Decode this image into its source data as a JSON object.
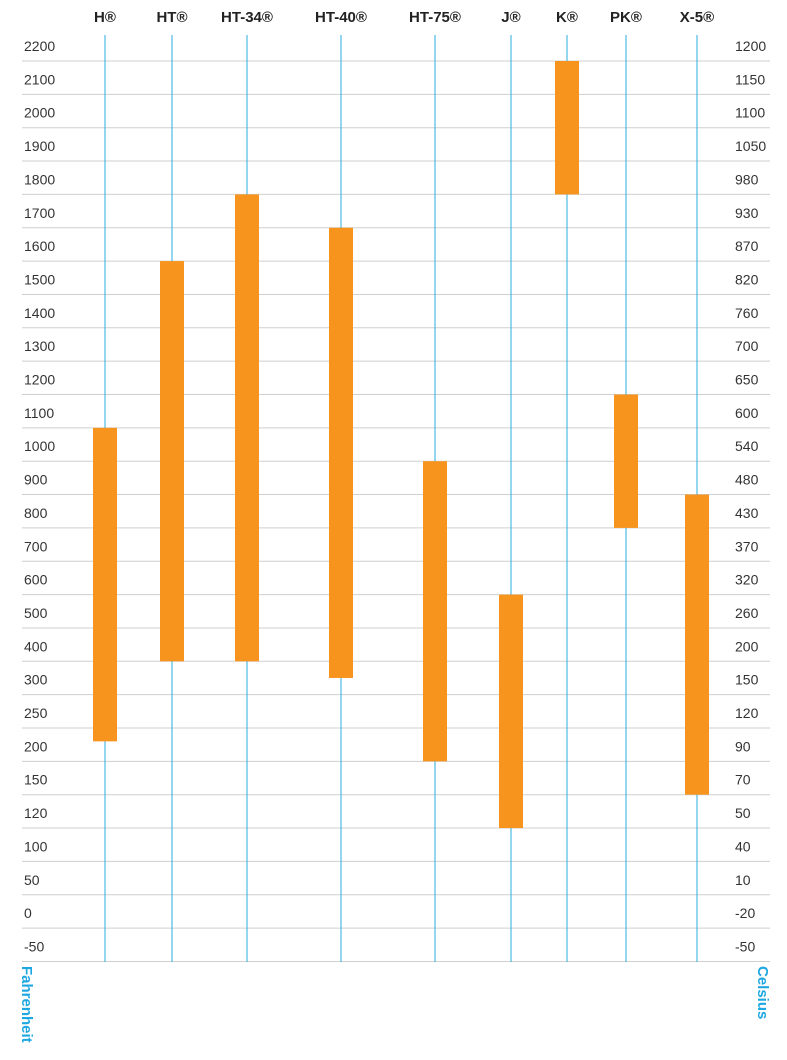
{
  "chart_data": {
    "type": "range-bar",
    "categories": [
      "H®",
      "HT®",
      "HT-34®",
      "HT-40®",
      "HT-75®",
      "J®",
      "K®",
      "PK®",
      "X-5®"
    ],
    "low": [
      230,
      400,
      400,
      350,
      200,
      120,
      1800,
      800,
      150
    ],
    "high": [
      1100,
      1600,
      1800,
      1700,
      1000,
      600,
      2200,
      1200,
      900
    ],
    "color": "#f7941d",
    "ylabel": "Fahrenheit",
    "y2label": "Celsius",
    "ylim": [
      -50,
      2200
    ],
    "yticks": [
      2200,
      2100,
      2000,
      1900,
      1800,
      1700,
      1600,
      1500,
      1400,
      1300,
      1200,
      1100,
      1000,
      900,
      800,
      700,
      600,
      500,
      400,
      300,
      250,
      200,
      150,
      120,
      100,
      50,
      0,
      -50
    ],
    "y2lim": [
      -50,
      1200
    ],
    "y2ticks": [
      1200,
      1150,
      1100,
      1050,
      980,
      930,
      870,
      820,
      760,
      700,
      650,
      600,
      540,
      480,
      430,
      370,
      320,
      260,
      200,
      150,
      120,
      90,
      70,
      50,
      40,
      10,
      -20,
      -50
    ],
    "grid": true
  }
}
